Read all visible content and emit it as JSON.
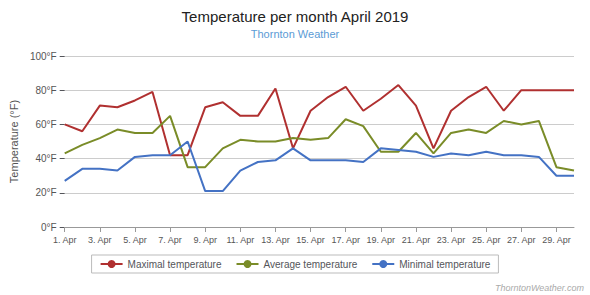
{
  "chart_data": {
    "type": "line",
    "title": "Temperature per month April 2019",
    "subtitle": "Thornton Weather",
    "annotations": [
      "ThorntonWeather.com"
    ],
    "ylabel": "Temperature (°F)",
    "x": [
      1,
      2,
      3,
      4,
      5,
      6,
      7,
      8,
      9,
      10,
      11,
      12,
      13,
      14,
      15,
      16,
      17,
      18,
      19,
      20,
      21,
      22,
      23,
      24,
      25,
      26,
      27,
      28,
      29,
      30
    ],
    "xlim": [
      1,
      30
    ],
    "xticks": [
      {
        "value": 1,
        "label": "1. Apr"
      },
      {
        "value": 3,
        "label": "3. Apr"
      },
      {
        "value": 5,
        "label": "5. Apr"
      },
      {
        "value": 7,
        "label": "7. Apr"
      },
      {
        "value": 9,
        "label": "9. Apr"
      },
      {
        "value": 11,
        "label": "11. Apr"
      },
      {
        "value": 13,
        "label": "13. Apr"
      },
      {
        "value": 15,
        "label": "15. Apr"
      },
      {
        "value": 17,
        "label": "17. Apr"
      },
      {
        "value": 19,
        "label": "19. Apr"
      },
      {
        "value": 21,
        "label": "21. Apr"
      },
      {
        "value": 23,
        "label": "23. Apr"
      },
      {
        "value": 25,
        "label": "25. Apr"
      },
      {
        "value": 27,
        "label": "27. Apr"
      },
      {
        "value": 29,
        "label": "29. Apr"
      }
    ],
    "ylim": [
      0,
      100
    ],
    "yticks": [
      {
        "value": 0,
        "label": "0°F"
      },
      {
        "value": 20,
        "label": "20°F"
      },
      {
        "value": 40,
        "label": "40°F"
      },
      {
        "value": 60,
        "label": "60°F"
      },
      {
        "value": 80,
        "label": "80°F"
      },
      {
        "value": 100,
        "label": "100°F"
      }
    ],
    "grid": true,
    "legend": "bottom",
    "series": [
      {
        "name": "Maximal temperature",
        "color": "#b03030",
        "values": [
          60,
          56,
          71,
          70,
          74,
          79,
          42,
          42,
          70,
          73,
          65,
          65,
          81,
          46,
          68,
          76,
          82,
          68,
          75,
          83,
          71,
          46,
          68,
          76,
          82,
          68,
          80,
          80,
          80,
          80
        ]
      },
      {
        "name": "Average temperature",
        "color": "#7a8c28",
        "values": [
          43,
          48,
          52,
          57,
          55,
          55,
          65,
          35,
          35,
          46,
          51,
          50,
          50,
          52,
          51,
          52,
          63,
          59,
          44,
          44,
          55,
          43,
          55,
          57,
          55,
          62,
          60,
          62,
          35,
          33
        ]
      },
      {
        "name": "Minimal temperature",
        "color": "#4472c4",
        "values": [
          27,
          34,
          34,
          33,
          41,
          42,
          42,
          50,
          21,
          21,
          33,
          38,
          39,
          46,
          39,
          39,
          39,
          38,
          46,
          45,
          44,
          41,
          43,
          42,
          44,
          42,
          42,
          41,
          30,
          30
        ]
      }
    ]
  }
}
